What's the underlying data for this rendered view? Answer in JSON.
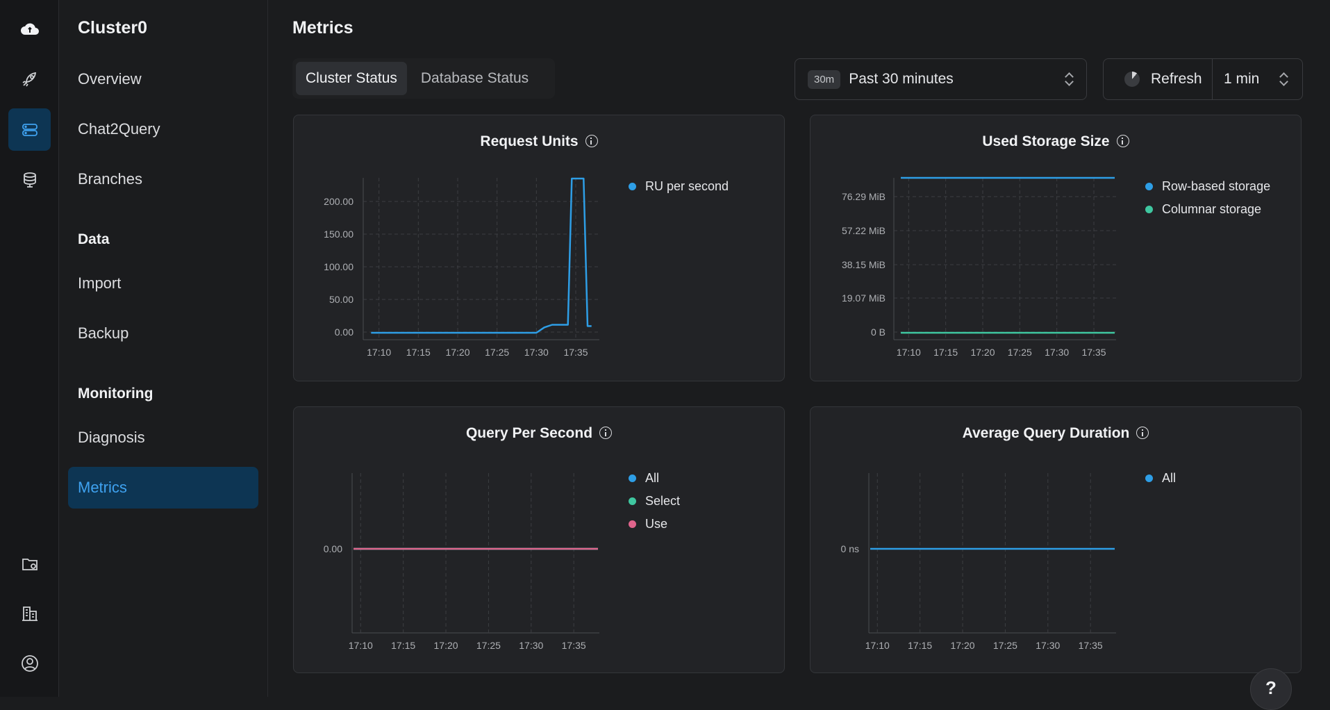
{
  "sidebar": {
    "cluster_name": "Cluster0",
    "items": [
      {
        "label": "Overview"
      },
      {
        "label": "Chat2Query"
      },
      {
        "label": "Branches"
      }
    ],
    "data_section": "Data",
    "data_items": [
      {
        "label": "Import"
      },
      {
        "label": "Backup"
      }
    ],
    "monitoring_section": "Monitoring",
    "monitoring_items": [
      {
        "label": "Diagnosis"
      },
      {
        "label": "Metrics"
      }
    ]
  },
  "header": {
    "title": "Metrics"
  },
  "tabs": [
    {
      "label": "Cluster Status"
    },
    {
      "label": "Database Status"
    }
  ],
  "time_range": {
    "badge": "30m",
    "label": "Past 30 minutes"
  },
  "refresh": {
    "label": "Refresh",
    "interval": "1 min"
  },
  "help": {
    "label": "?"
  },
  "chart_data": [
    {
      "type": "line",
      "title": "Request Units",
      "x": [
        "17:10",
        "17:15",
        "17:20",
        "17:25",
        "17:30",
        "17:35"
      ],
      "yticks": [
        "200.00",
        "150.00",
        "100.00",
        "50.00",
        "0.00"
      ],
      "ylim": [
        0,
        233
      ],
      "series": [
        {
          "name": "RU per second",
          "color": "#2e9ee6",
          "points": [
            [
              "17:09",
              0
            ],
            [
              "17:30",
              0
            ],
            [
              "17:31",
              8
            ],
            [
              "17:32",
              12
            ],
            [
              "17:34",
              12
            ],
            [
              "17:34.5",
              232
            ],
            [
              "17:36",
              232
            ],
            [
              "17:36.5",
              10
            ],
            [
              "17:37",
              10
            ]
          ]
        }
      ]
    },
    {
      "type": "line",
      "title": "Used Storage Size",
      "x": [
        "17:10",
        "17:15",
        "17:20",
        "17:25",
        "17:30",
        "17:35"
      ],
      "yticks": [
        "76.29 MiB",
        "57.22 MiB",
        "38.15 MiB",
        "19.07 MiB",
        "0 B"
      ],
      "series": [
        {
          "name": "Row-based storage",
          "color": "#2e9ee6",
          "level": "88 MiB"
        },
        {
          "name": "Columnar storage",
          "color": "#3fc7a0",
          "level": "0 B"
        }
      ]
    },
    {
      "type": "line",
      "title": "Query Per Second",
      "x": [
        "17:10",
        "17:15",
        "17:20",
        "17:25",
        "17:30",
        "17:35"
      ],
      "yticks": [
        "0.00"
      ],
      "series": [
        {
          "name": "All",
          "color": "#2e9ee6",
          "level": 0
        },
        {
          "name": "Select",
          "color": "#3fc7a0",
          "level": 0
        },
        {
          "name": "Use",
          "color": "#e0648c",
          "level": 0
        }
      ]
    },
    {
      "type": "line",
      "title": "Average Query Duration",
      "x": [
        "17:10",
        "17:15",
        "17:20",
        "17:25",
        "17:30",
        "17:35"
      ],
      "yticks": [
        "0 ns"
      ],
      "series": [
        {
          "name": "All",
          "color": "#2e9ee6",
          "level": "0 ns"
        }
      ]
    }
  ]
}
